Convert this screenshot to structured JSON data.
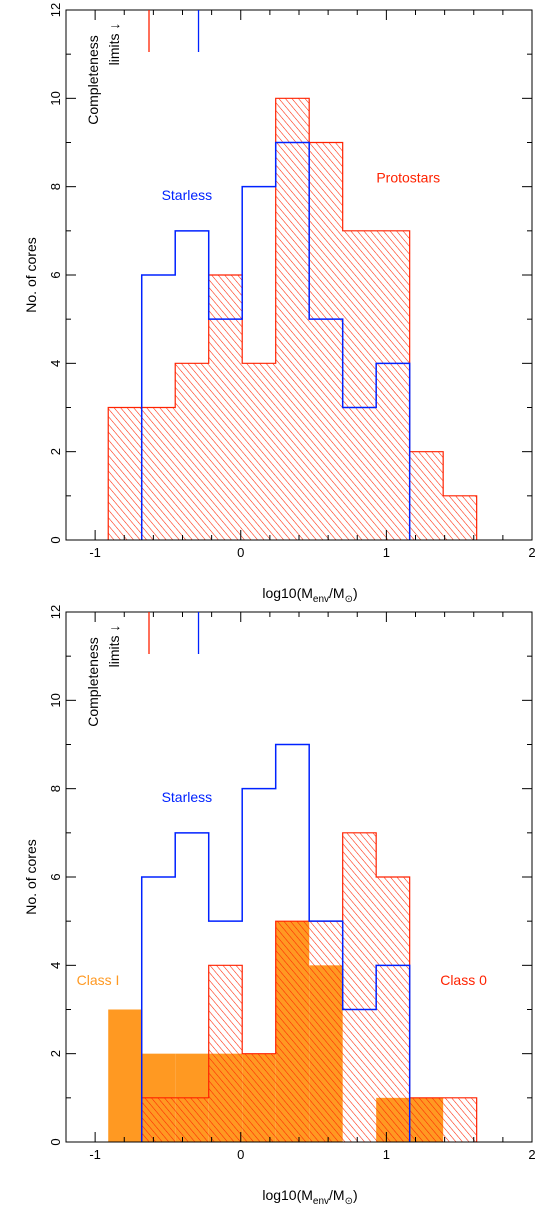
{
  "chart_data": [
    {
      "type": "bar",
      "subtype": "histogram",
      "xlabel": "log10(M_env/M_⊙)",
      "xlabel_base": "log10(M",
      "xlabel_sub1": "env",
      "xlabel_mid": "/M",
      "xlabel_sub2": "⊙",
      "xlabel_end": ")",
      "ylabel": "No. of cores",
      "xlim": [
        -1.2,
        2.0
      ],
      "ylim": [
        0,
        12
      ],
      "xticks": [
        -1,
        0,
        1,
        2
      ],
      "yticks": [
        0,
        2,
        4,
        6,
        8,
        10,
        12
      ],
      "completeness": {
        "label_line1": "Completeness",
        "label_line2": "limits ↓",
        "limits": [
          {
            "series": "Protostars",
            "x": -0.63,
            "color": "#ff2200"
          },
          {
            "series": "Starless",
            "x": -0.29,
            "color": "#0022ff"
          }
        ]
      },
      "series": [
        {
          "name": "Protostars",
          "label_x": 1.15,
          "label_y": 8.1,
          "color": "#ff2200",
          "style": "hatched",
          "bin_edges": [
            -0.91,
            -0.68,
            -0.45,
            -0.22,
            0.01,
            0.24,
            0.47,
            0.7,
            0.93,
            1.16,
            1.39,
            1.62
          ],
          "values": [
            3,
            3,
            4,
            6,
            4,
            10,
            9,
            7,
            7,
            2,
            1
          ]
        },
        {
          "name": "Starless",
          "label_x": -0.37,
          "label_y": 7.7,
          "color": "#0022ff",
          "style": "outline",
          "bin_edges": [
            -0.68,
            -0.45,
            -0.22,
            0.01,
            0.24,
            0.47,
            0.7,
            0.93,
            1.16
          ],
          "values": [
            6,
            7,
            5,
            8,
            9,
            5,
            3,
            4
          ]
        }
      ]
    },
    {
      "type": "bar",
      "subtype": "histogram",
      "xlabel": "log10(M_env/M_⊙)",
      "xlabel_base": "log10(M",
      "xlabel_sub1": "env",
      "xlabel_mid": "/M",
      "xlabel_sub2": "⊙",
      "xlabel_end": ")",
      "ylabel": "No. of cores",
      "xlim": [
        -1.2,
        2.0
      ],
      "ylim": [
        0,
        12
      ],
      "xticks": [
        -1,
        0,
        1,
        2
      ],
      "yticks": [
        0,
        2,
        4,
        6,
        8,
        10,
        12
      ],
      "completeness": {
        "label_line1": "Completeness",
        "label_line2": "limits ↓",
        "limits": [
          {
            "series": "Protostars",
            "x": -0.63,
            "color": "#ff2200"
          },
          {
            "series": "Starless",
            "x": -0.29,
            "color": "#0022ff"
          }
        ]
      },
      "series": [
        {
          "name": "Class 0",
          "label_x": 1.53,
          "label_y": 3.55,
          "color": "#ff2200",
          "style": "hatched",
          "bin_edges": [
            -0.68,
            -0.45,
            -0.22,
            0.01,
            0.24,
            0.47,
            0.7,
            0.93,
            1.16,
            1.39,
            1.62
          ],
          "values": [
            1,
            1,
            4,
            2,
            5,
            5,
            7,
            6,
            1,
            1
          ]
        },
        {
          "name": "Class I",
          "label_x": -0.98,
          "label_y": 3.55,
          "color": "#ff9922",
          "style": "filled",
          "bin_edges": [
            -0.91,
            -0.68,
            -0.45,
            -0.22,
            0.01,
            0.24,
            0.47,
            0.7,
            0.93,
            1.16,
            1.39
          ],
          "values": [
            3,
            2,
            2,
            2,
            2,
            5,
            4,
            0,
            1,
            1
          ]
        },
        {
          "name": "Starless",
          "label_x": -0.37,
          "label_y": 7.7,
          "color": "#0022ff",
          "style": "outline",
          "bin_edges": [
            -0.68,
            -0.45,
            -0.22,
            0.01,
            0.24,
            0.47,
            0.7,
            0.93,
            1.16
          ],
          "values": [
            6,
            7,
            5,
            8,
            9,
            5,
            3,
            4
          ]
        }
      ]
    }
  ]
}
